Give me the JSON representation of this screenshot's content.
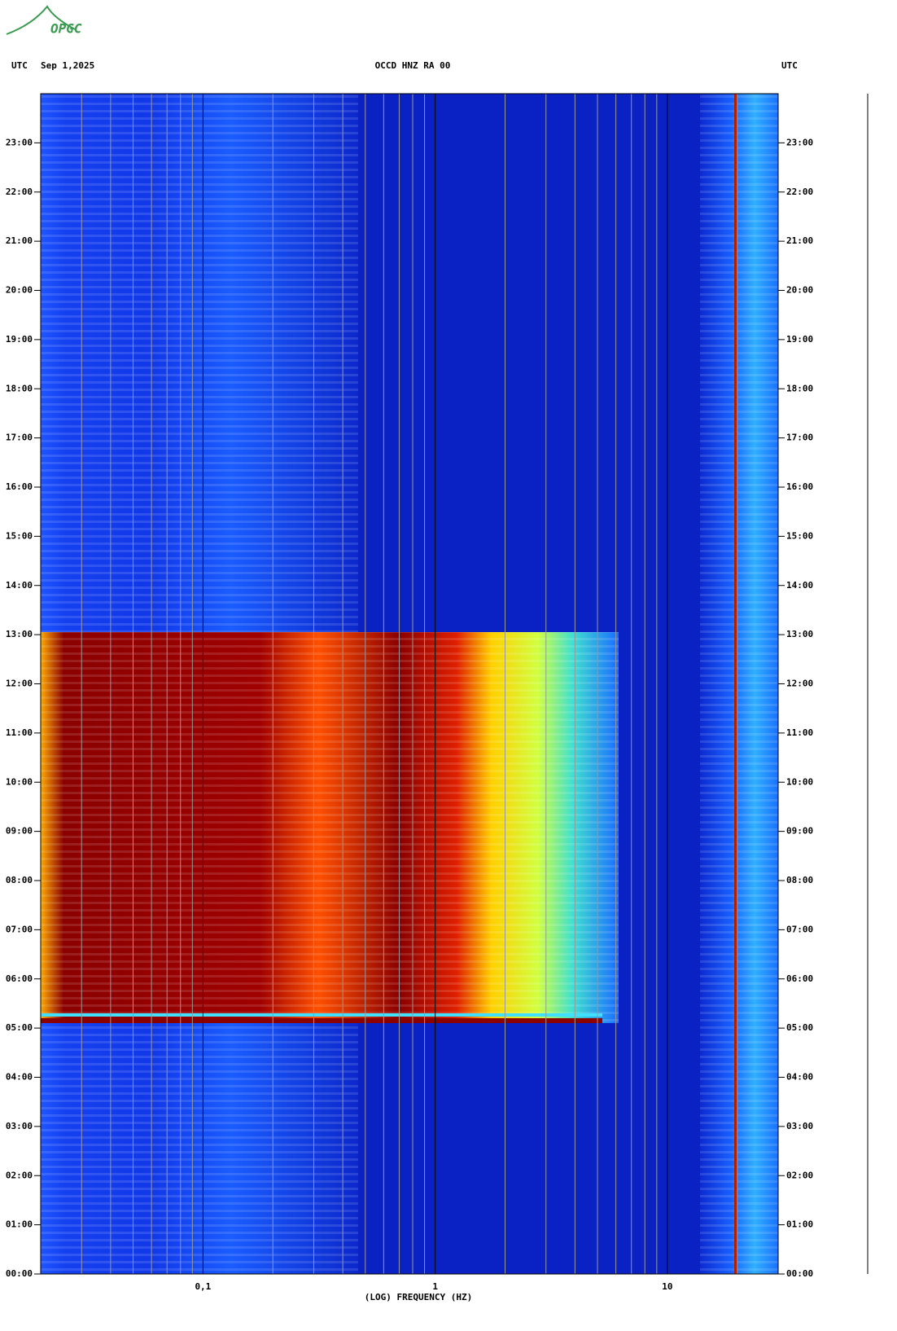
{
  "logo": "OPGC",
  "chart_data": {
    "type": "spectrogram",
    "title": "OCCD HNZ RA 00",
    "date": "Sep 1,2025",
    "left_label": "UTC",
    "right_label": "UTC",
    "xlabel": "(LOG) FREQUENCY (HZ)",
    "xscale": "log",
    "xlim": [
      0.02,
      30
    ],
    "xticks": [
      {
        "value": 0.1,
        "label": "0,1"
      },
      1,
      10
    ],
    "xgrid": [
      0.03,
      0.04,
      0.05,
      0.06,
      0.07,
      0.08,
      0.09,
      0.2,
      0.3,
      0.4,
      0.5,
      0.6,
      0.7,
      0.8,
      0.9,
      2,
      3,
      4,
      5,
      6,
      7,
      8,
      9,
      20
    ],
    "ylim": [
      0,
      24
    ],
    "yticks": [
      {
        "value": 0,
        "label": "00:00"
      },
      {
        "value": 1,
        "label": "01:00"
      },
      {
        "value": 2,
        "label": "02:00"
      },
      {
        "value": 3,
        "label": "03:00"
      },
      {
        "value": 4,
        "label": "04:00"
      },
      {
        "value": 5,
        "label": "05:00"
      },
      {
        "value": 6,
        "label": "06:00"
      },
      {
        "value": 7,
        "label": "07:00"
      },
      {
        "value": 8,
        "label": "08:00"
      },
      {
        "value": 9,
        "label": "09:00"
      },
      {
        "value": 10,
        "label": "10:00"
      },
      {
        "value": 11,
        "label": "11:00"
      },
      {
        "value": 12,
        "label": "12:00"
      },
      {
        "value": 13,
        "label": "13:00"
      },
      {
        "value": 14,
        "label": "14:00"
      },
      {
        "value": 15,
        "label": "15:00"
      },
      {
        "value": 16,
        "label": "16:00"
      },
      {
        "value": 17,
        "label": "17:00"
      },
      {
        "value": 18,
        "label": "18:00"
      },
      {
        "value": 19,
        "label": "19:00"
      },
      {
        "value": 20,
        "label": "20:00"
      },
      {
        "value": 21,
        "label": "21:00"
      },
      {
        "value": 22,
        "label": "22:00"
      },
      {
        "value": 23,
        "label": "23:00"
      }
    ]
  }
}
